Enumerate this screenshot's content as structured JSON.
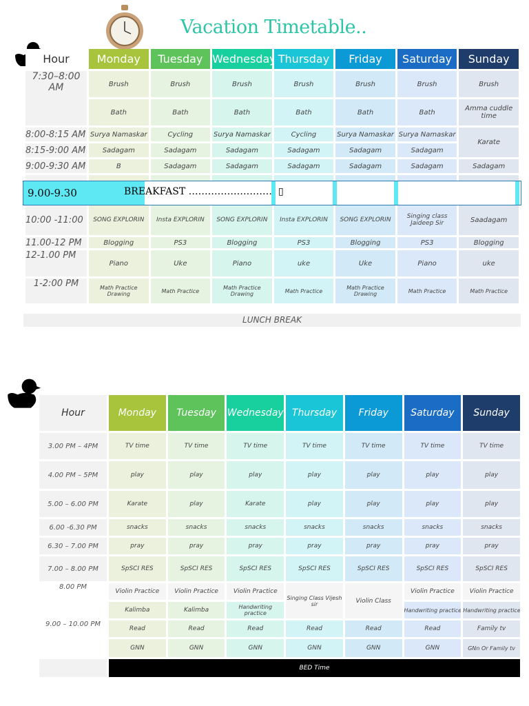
{
  "title": "Vacation Timetable..",
  "top": {
    "header_hour": "Hour",
    "days": [
      "Monday",
      "Tuesday",
      "Wednesday",
      "Thursday",
      "Friday",
      "Saturday",
      "Sunday"
    ],
    "rows": [
      {
        "hour": "7:30–8:00 AM",
        "cells": [
          "Brush",
          "Brush",
          "Brush",
          "Brush",
          "Brush",
          "Brush",
          "Brush"
        ]
      },
      {
        "hour": "",
        "cells": [
          "Bath",
          "Bath",
          "Bath",
          "Bath",
          "Bath",
          "Bath",
          "Amma cuddle time"
        ]
      },
      {
        "hour": "8:00-8:15 AM",
        "cells": [
          "Surya Namaskar",
          "Cycling",
          "Surya Namaskar",
          "Cycling",
          "Surya Namaskar",
          "Surya Namaskar",
          "Karate"
        ]
      },
      {
        "hour": "8:15-9:00 AM",
        "cells": [
          "Sadagam",
          "Sadagam",
          "Sadagam",
          "Sadagam",
          "Sadagam",
          "Sadagam"
        ]
      },
      {
        "hour": "9:00-9:30 AM",
        "cells": [
          "B",
          "Sadagam",
          "Sadagam",
          "Sadagam",
          "Sadagam",
          "Sadagam",
          "Sadagam"
        ]
      },
      {
        "hour": "10:00 -11:00",
        "cells": [
          "SONG EXPLORIN",
          "Insta EXPLORIN",
          "SONG EXPLORIN",
          "Insta  EXPLORIN",
          "SONG EXPLORIN",
          "Singing class Jaideep Sir",
          "Saadagam"
        ]
      },
      {
        "hour": "11.00-12 PM",
        "cells": [
          "Blogging",
          "PS3",
          "Blogging",
          "PS3",
          "Blogging",
          "PS3",
          "Blogging"
        ]
      },
      {
        "hour": "12-1.00 PM",
        "cells": [
          "Piano",
          "Uke",
          "Piano",
          "uke",
          "Uke",
          "Piano",
          "uke"
        ]
      },
      {
        "hour": "1-2:00 PM",
        "cells": [
          "Math Practice Drawing",
          "Math Practice",
          "Math Practice Drawing",
          "Math Practice",
          "Math Practice Drawing",
          "Math Practice",
          "Math Practice"
        ]
      }
    ],
    "breakfast_time": "9.00-9.30",
    "breakfast_label": "BREAKFAST ……………………… ▯",
    "lunch": "LUNCH BREAK"
  },
  "bottom": {
    "header_hour": "Hour",
    "days": [
      "Monday",
      "Tuesday",
      "Wednesday",
      "Thursday",
      "Friday",
      "Saturday",
      "Sunday"
    ],
    "rows": [
      {
        "hour": "3.00 PM – 4PM",
        "cells": [
          "TV time",
          "TV time",
          "TV time",
          "TV time",
          "TV time",
          "TV time",
          "TV time"
        ]
      },
      {
        "hour": "4.00 PM – 5PM",
        "cells": [
          "play",
          "play",
          "play",
          "play",
          "play",
          "play",
          "play"
        ]
      },
      {
        "hour": "5.00 – 6.00 PM",
        "cells": [
          "Karate",
          "play",
          "Karate",
          "play",
          "play",
          "play",
          "play"
        ]
      },
      {
        "hour": "6.00 -6.30 PM",
        "cells": [
          "snacks",
          "snacks",
          "snacks",
          "snacks",
          "snacks",
          "snacks",
          "snacks"
        ]
      },
      {
        "hour": "6.30 – 7.00 PM",
        "cells": [
          "pray",
          "pray",
          "pray",
          "pray",
          "pray",
          "pray",
          "pray"
        ]
      },
      {
        "hour": "7.00 – 8.00 PM",
        "cells": [
          "SpSCI RES",
          "SpSCI RES",
          "SpSCI RES",
          "SpSCI RES",
          "SpSCI RES",
          "SpSCI RES",
          "SpSCI RES"
        ]
      },
      {
        "hour": "8.00 PM",
        "cells": [
          "Violin Practice",
          "Violin Practice",
          "Violin Practice",
          "Singing Class Vijesh sir",
          "Violin Class",
          "Violin Practice",
          "Violin Practice"
        ]
      },
      {
        "hour": "",
        "cells": [
          "Kalimba",
          "Kalimba",
          "Handwriting practice",
          "Handwriting practice",
          "Handwriting practice"
        ]
      },
      {
        "hour": "9.00 – 10.00 PM",
        "cells": [
          "Read",
          "Read",
          "Read",
          "Read",
          "Read",
          "Read",
          "Family tv"
        ]
      },
      {
        "hour": "",
        "cells": [
          "GNN",
          "GNN",
          "GNN",
          "GNN",
          "GNN",
          "GNN",
          "GNn Or Family tv"
        ]
      }
    ],
    "bed": "BED Time"
  }
}
